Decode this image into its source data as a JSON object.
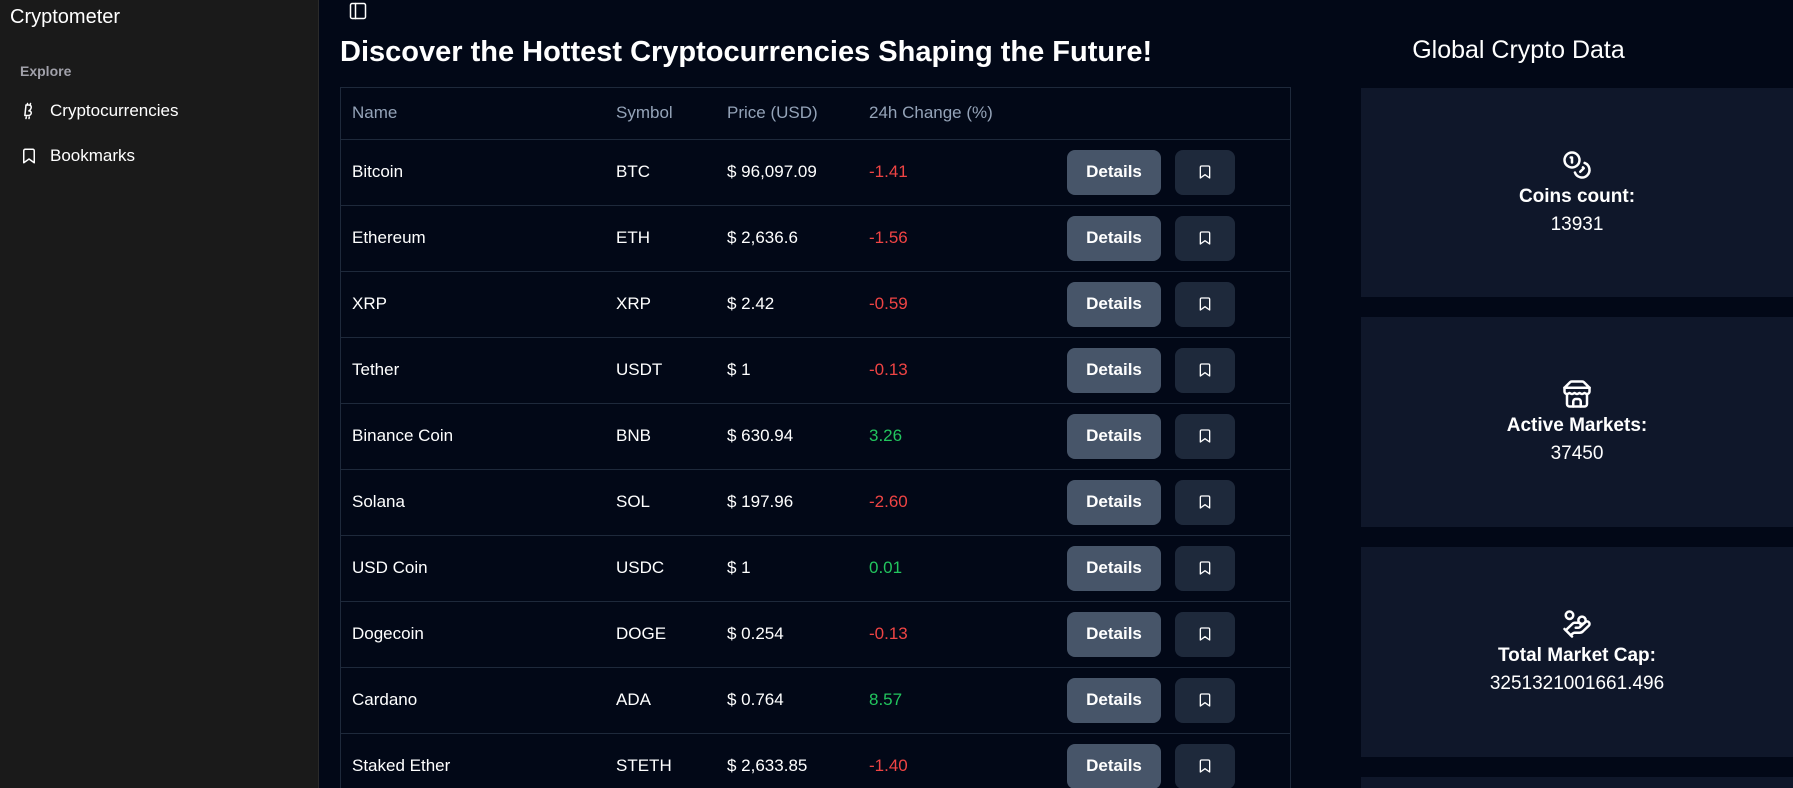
{
  "app": {
    "title": "Cryptometer"
  },
  "sidebar": {
    "section": "Explore",
    "items": [
      {
        "label": "Cryptocurrencies",
        "icon": "bitcoin-icon"
      },
      {
        "label": "Bookmarks",
        "icon": "bookmark-icon"
      }
    ]
  },
  "main": {
    "title": "Discover the Hottest Cryptocurrencies Shaping the Future!",
    "columns": [
      "Name",
      "Symbol",
      "Price (USD)",
      "24h Change (%)"
    ],
    "details_label": "Details",
    "rows": [
      {
        "name": "Bitcoin",
        "symbol": "BTC",
        "price": "$ 96,097.09",
        "change": "-1.41"
      },
      {
        "name": "Ethereum",
        "symbol": "ETH",
        "price": "$ 2,636.6",
        "change": "-1.56"
      },
      {
        "name": "XRP",
        "symbol": "XRP",
        "price": "$ 2.42",
        "change": "-0.59"
      },
      {
        "name": "Tether",
        "symbol": "USDT",
        "price": "$ 1",
        "change": "-0.13"
      },
      {
        "name": "Binance Coin",
        "symbol": "BNB",
        "price": "$ 630.94",
        "change": "3.26"
      },
      {
        "name": "Solana",
        "symbol": "SOL",
        "price": "$ 197.96",
        "change": "-2.60"
      },
      {
        "name": "USD Coin",
        "symbol": "USDC",
        "price": "$ 1",
        "change": "0.01"
      },
      {
        "name": "Dogecoin",
        "symbol": "DOGE",
        "price": "$ 0.254",
        "change": "-0.13"
      },
      {
        "name": "Cardano",
        "symbol": "ADA",
        "price": "$ 0.764",
        "change": "8.57"
      },
      {
        "name": "Staked Ether",
        "symbol": "STETH",
        "price": "$ 2,633.85",
        "change": "-1.40"
      }
    ]
  },
  "global": {
    "title": "Global Crypto Data",
    "stats": [
      {
        "label": "Coins count:",
        "value": "13931",
        "icon": "coins-icon"
      },
      {
        "label": "Active Markets:",
        "value": "37450",
        "icon": "store-icon"
      },
      {
        "label": "Total Market Cap:",
        "value": "3251321001661.496",
        "icon": "hand-coins-icon"
      }
    ]
  },
  "colors": {
    "negative": "#ef4444",
    "positive": "#22c55e",
    "background": "#020817",
    "sidebar": "#1a1a1a"
  }
}
